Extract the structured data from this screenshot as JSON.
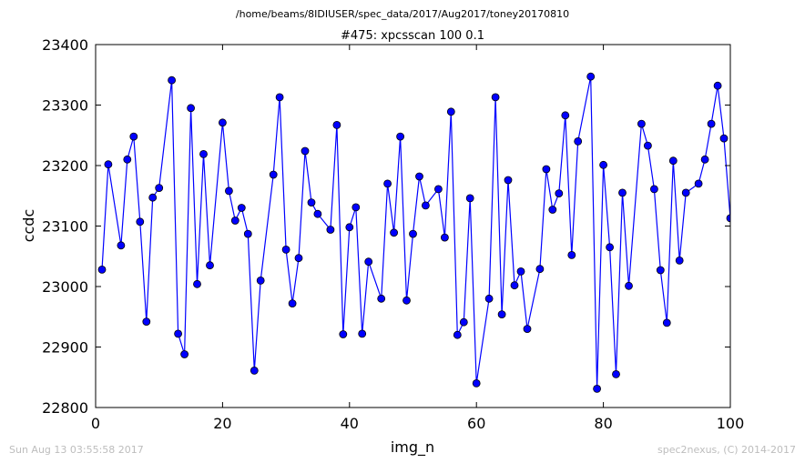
{
  "supertitle": "/home/beams/8IDIUSER/spec_data/2017/Aug2017/toney20170810",
  "footer": {
    "timestamp": "Sun Aug 13 03:55:58 2017",
    "credit": "spec2nexus, (C) 2014-2017"
  },
  "colors": {
    "series": "#0000ff",
    "marker": "#0000ff",
    "marker_edge": "#000000",
    "footer": "#bdbdbd"
  },
  "chart_data": {
    "type": "line",
    "title": "#475: xpcsscan 100 0.1",
    "xlabel": "img_n",
    "ylabel": "ccdc",
    "xlim": [
      0,
      100
    ],
    "ylim": [
      22800,
      23400
    ],
    "xticks": [
      "0",
      "20",
      "40",
      "60",
      "80",
      "100"
    ],
    "yticks": [
      "22800",
      "22900",
      "23000",
      "23100",
      "23200",
      "23300",
      "23400"
    ],
    "grid": false,
    "legend": "none",
    "series": [
      {
        "x": [
          1,
          2,
          3,
          4,
          5,
          6,
          7,
          8,
          9,
          10,
          11,
          12,
          13,
          14,
          15,
          16,
          17,
          18,
          19,
          20,
          21,
          22,
          23,
          24,
          25,
          26,
          27,
          28,
          29,
          30,
          31,
          32,
          33,
          34,
          35,
          36,
          37,
          38,
          39,
          40,
          41,
          42,
          43,
          44,
          45,
          46,
          47,
          48,
          49,
          50,
          51,
          52,
          53,
          54,
          55,
          56,
          57,
          58,
          59,
          60,
          61,
          62,
          63,
          64,
          65,
          66,
          67,
          68,
          69,
          70,
          71,
          72,
          73,
          74,
          75,
          76,
          77,
          78,
          79,
          80,
          81,
          82,
          83,
          84,
          85,
          86,
          87,
          88,
          89,
          90,
          91,
          92,
          93,
          94,
          95,
          96,
          97,
          98,
          99,
          100
        ],
        "y": [
          23028,
          23202,
          null,
          23068,
          23210,
          23248,
          23107,
          22942,
          23147,
          23163,
          null,
          23341,
          22922,
          22888,
          23295,
          23004,
          23219,
          23035,
          null,
          23271,
          23158,
          23109,
          23130,
          23087,
          22861,
          23010,
          null,
          23185,
          23313,
          23061,
          22972,
          23047,
          23224,
          23139,
          23120,
          null,
          23094,
          23267,
          22921,
          23098,
          23131,
          22922,
          23041,
          null,
          22980,
          23170,
          23089,
          23248,
          22977,
          23087,
          23182,
          23134,
          null,
          23161,
          23081,
          23289,
          22920,
          22941,
          23146,
          22840,
          null,
          22980,
          23313,
          22954,
          23176,
          23002,
          23025,
          22930,
          null,
          23029,
          23194,
          23127,
          23154,
          23283,
          23052,
          23240,
          null,
          23347,
          22831,
          23201,
          23065,
          22855,
          23155,
          23001,
          null,
          23269,
          23233,
          23161,
          23027,
          22940,
          23208,
          23043,
          23155,
          null,
          23170,
          23210,
          23269,
          23332,
          23245,
          23113
        ]
      }
    ]
  }
}
